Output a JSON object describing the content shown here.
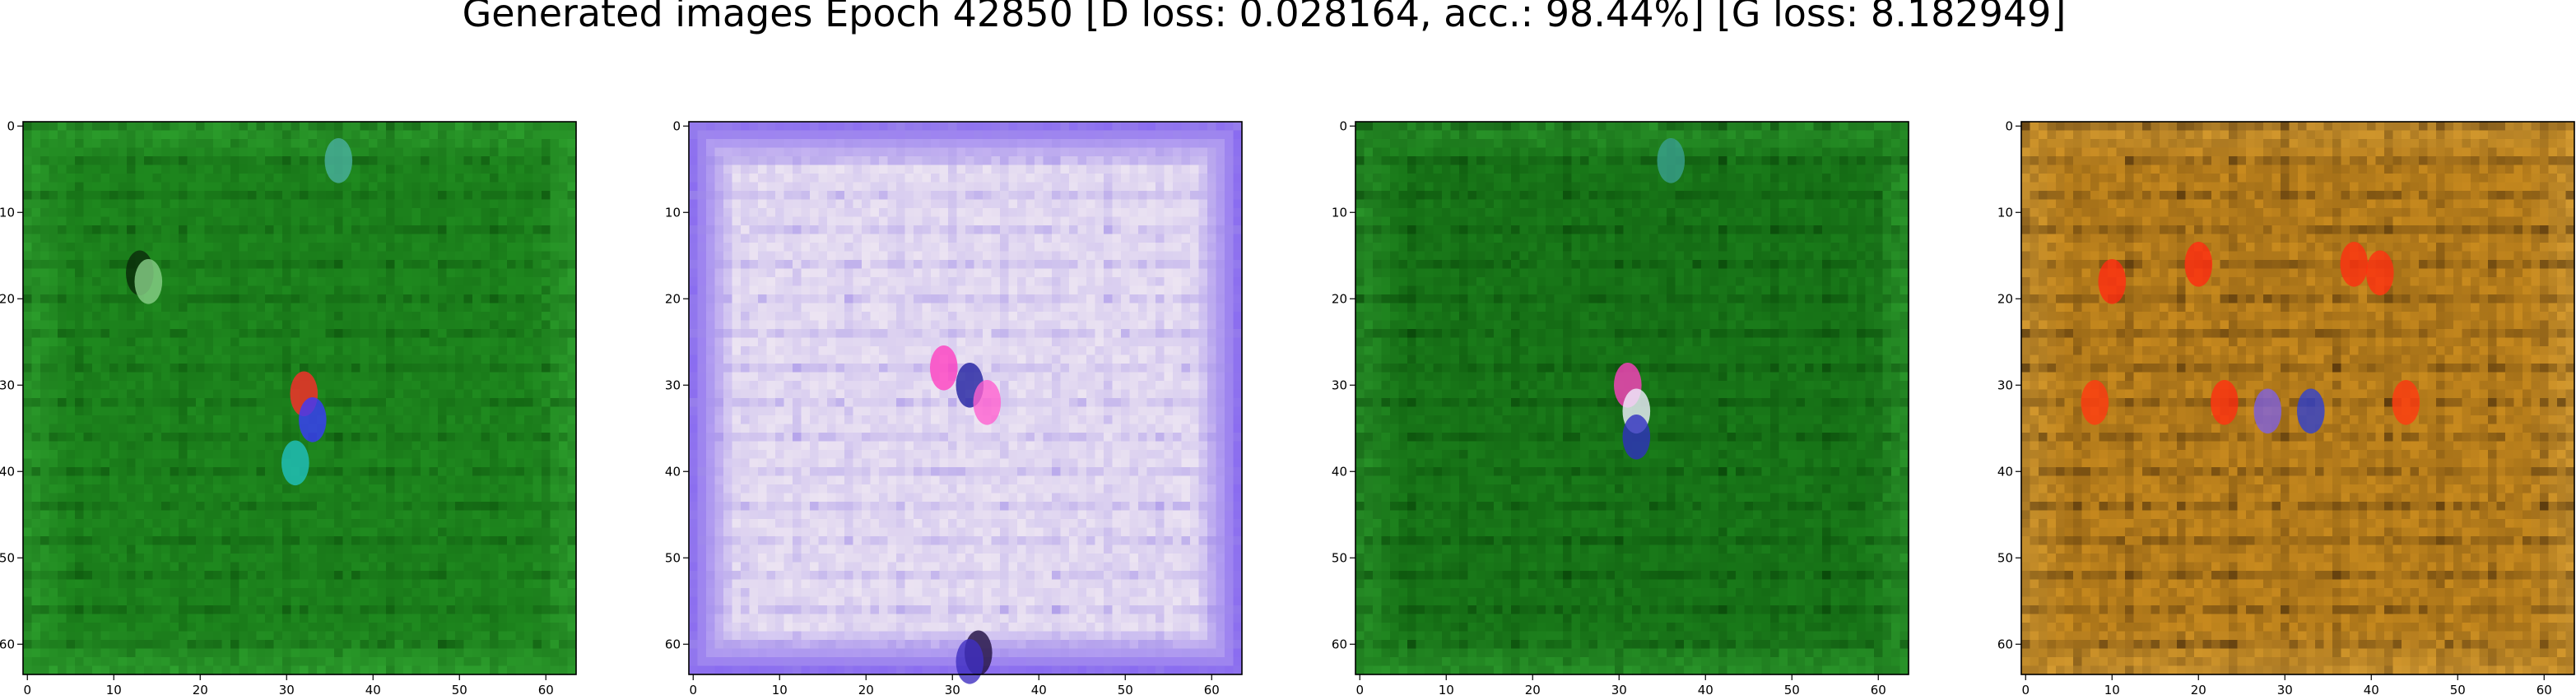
{
  "figure": {
    "title": "Generated images Epoch 42850 [D loss: 0.028164, acc.: 98.44%] [G loss: 8.182949]"
  },
  "chart_data": [
    {
      "type": "heatmap",
      "title": "",
      "xlabel": "",
      "ylabel": "",
      "xlim": [
        -0.5,
        63.5
      ],
      "ylim": [
        63.5,
        -0.5
      ],
      "xticks": [
        0,
        10,
        20,
        30,
        40,
        50,
        60
      ],
      "yticks": [
        0,
        10,
        20,
        30,
        40,
        50,
        60
      ],
      "grid": false,
      "base_color": "#1f8a1f",
      "edge_color": "#2ea02e",
      "texture_color": "#0a4a0a",
      "highlights": [
        {
          "x": 32,
          "y": 31,
          "color": "#ff2a2a"
        },
        {
          "x": 33,
          "y": 34,
          "color": "#3a3aff"
        },
        {
          "x": 31,
          "y": 39,
          "color": "#20c0c0"
        },
        {
          "x": 13,
          "y": 17,
          "color": "#0a2a0a"
        },
        {
          "x": 14,
          "y": 18,
          "color": "#8ad08a"
        },
        {
          "x": 36,
          "y": 4,
          "color": "#4ab0a0"
        }
      ]
    },
    {
      "type": "heatmap",
      "title": "",
      "xlabel": "",
      "ylabel": "",
      "xlim": [
        -0.5,
        63.5
      ],
      "ylim": [
        63.5,
        -0.5
      ],
      "xticks": [
        0,
        10,
        20,
        30,
        40,
        50,
        60
      ],
      "yticks": [
        0,
        10,
        20,
        30,
        40,
        50,
        60
      ],
      "grid": false,
      "base_color": "#ece4f2",
      "edge_color": "#8a6cf0",
      "texture_color": "#a08ce8",
      "highlights": [
        {
          "x": 29,
          "y": 28,
          "color": "#ff40c0"
        },
        {
          "x": 32,
          "y": 30,
          "color": "#2020a0"
        },
        {
          "x": 34,
          "y": 32,
          "color": "#ff60d0"
        },
        {
          "x": 33,
          "y": 61,
          "color": "#201040"
        },
        {
          "x": 32,
          "y": 62,
          "color": "#4030c0"
        }
      ]
    },
    {
      "type": "heatmap",
      "title": "",
      "xlabel": "",
      "ylabel": "",
      "xlim": [
        -0.5,
        63.5
      ],
      "ylim": [
        63.5,
        -0.5
      ],
      "xticks": [
        0,
        10,
        20,
        30,
        40,
        50,
        60
      ],
      "yticks": [
        0,
        10,
        20,
        30,
        40,
        50,
        60
      ],
      "grid": false,
      "base_color": "#1a7c1a",
      "edge_color": "#2a962a",
      "texture_color": "#053a05",
      "highlights": [
        {
          "x": 31,
          "y": 30,
          "color": "#ff40c0"
        },
        {
          "x": 32,
          "y": 33,
          "color": "#f0f0ff"
        },
        {
          "x": 32,
          "y": 36,
          "color": "#3030c0"
        },
        {
          "x": 36,
          "y": 4,
          "color": "#3aa090"
        }
      ]
    },
    {
      "type": "heatmap",
      "title": "",
      "xlabel": "",
      "ylabel": "",
      "xlim": [
        -0.5,
        63.5
      ],
      "ylim": [
        63.5,
        -0.5
      ],
      "xticks": [
        0,
        10,
        20,
        30,
        40,
        50,
        60
      ],
      "yticks": [
        0,
        10,
        20,
        30,
        40,
        50,
        60
      ],
      "grid": false,
      "base_color": "#c88a1e",
      "edge_color": "#d49a30",
      "texture_color": "#3a2208",
      "highlights": [
        {
          "x": 10,
          "y": 18,
          "color": "#ff2a10"
        },
        {
          "x": 20,
          "y": 16,
          "color": "#ff2a10"
        },
        {
          "x": 38,
          "y": 16,
          "color": "#ff3010"
        },
        {
          "x": 41,
          "y": 17,
          "color": "#ff3010"
        },
        {
          "x": 8,
          "y": 32,
          "color": "#ff3a10"
        },
        {
          "x": 23,
          "y": 32,
          "color": "#ff3010"
        },
        {
          "x": 44,
          "y": 32,
          "color": "#ff3a10"
        },
        {
          "x": 33,
          "y": 33,
          "color": "#3040d0"
        },
        {
          "x": 28,
          "y": 33,
          "color": "#8060e0"
        }
      ]
    }
  ]
}
